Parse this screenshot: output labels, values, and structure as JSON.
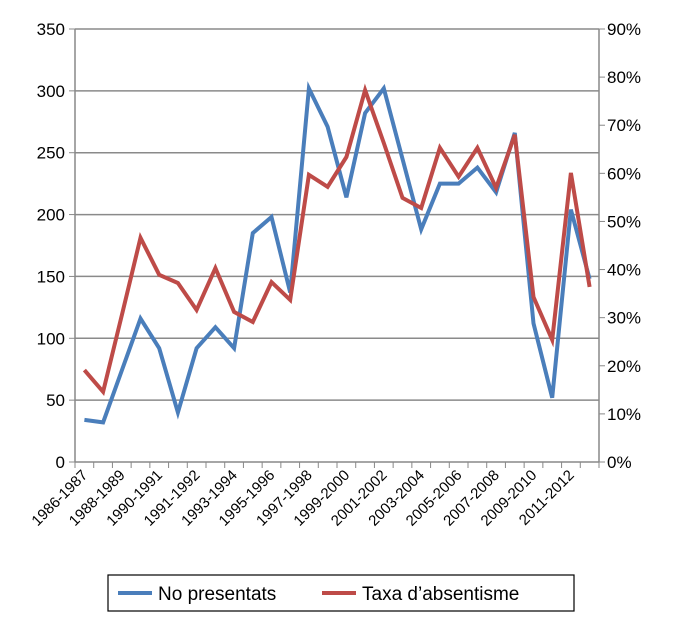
{
  "chart_data": {
    "type": "line",
    "title": "",
    "categories": [
      "1986-1987",
      "",
      "1988-1989",
      "",
      "1990-1991",
      "",
      "1991-1992",
      "",
      "1993-1994",
      "",
      "1995-1996",
      "",
      "1997-1998",
      "",
      "1999-2000",
      "",
      "2001-2002",
      "",
      "2003-2004",
      "",
      "2005-2006",
      "",
      "2007-2008",
      "",
      "2009-2010",
      "",
      "2011-2012",
      ""
    ],
    "series": [
      {
        "name": "No presentats",
        "axis": "left",
        "color": "#4a7ebb",
        "values": [
          34,
          32,
          74,
          116,
          92,
          40,
          92,
          109,
          92,
          185,
          198,
          137,
          302,
          271,
          214,
          282,
          302,
          245,
          188,
          225,
          225,
          238,
          218,
          266,
          112,
          52,
          204,
          148
        ]
      },
      {
        "name": "Taxa d’absentisme",
        "axis": "right",
        "color": "#be4b48",
        "values": [
          19.1,
          14.6,
          30.5,
          46.6,
          38.9,
          37.2,
          31.6,
          40.3,
          31.2,
          29.1,
          37.4,
          33.7,
          59.7,
          57.2,
          63.4,
          77.3,
          66.3,
          54.9,
          52.8,
          65.3,
          59.3,
          65.3,
          57.0,
          68.0,
          34.3,
          25.4,
          60.1,
          36.4
        ]
      }
    ],
    "left_axis": {
      "ylim": [
        0,
        350
      ],
      "ticks": [
        "0",
        "50",
        "100",
        "150",
        "200",
        "250",
        "300",
        "350"
      ]
    },
    "right_axis": {
      "ylim": [
        0,
        90
      ],
      "unit": "%",
      "ticks": [
        "0%",
        "10%",
        "20%",
        "30%",
        "40%",
        "50%",
        "60%",
        "70%",
        "80%",
        "90%"
      ]
    },
    "grid": true,
    "legend": "bottom"
  }
}
